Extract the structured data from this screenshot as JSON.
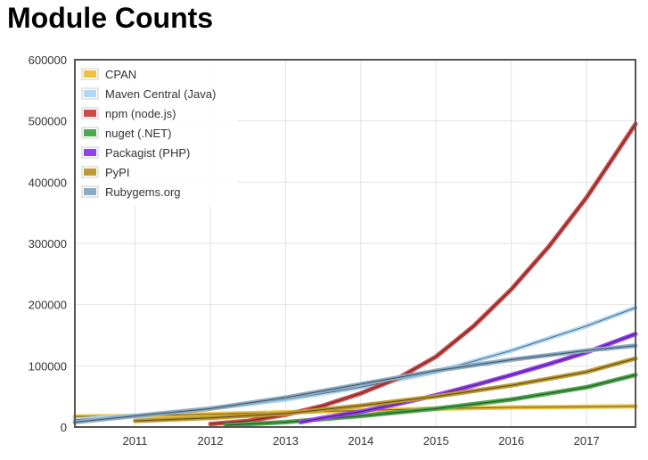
{
  "page": {
    "title": "Module Counts"
  },
  "chart_data": {
    "type": "line",
    "title": "Module Counts",
    "xlabel": "",
    "ylabel": "",
    "xlim": [
      2010.2,
      2017.65
    ],
    "ylim": [
      0,
      600000
    ],
    "x_ticks": [
      2011,
      2012,
      2013,
      2014,
      2015,
      2016,
      2017
    ],
    "y_ticks": [
      0,
      100000,
      200000,
      300000,
      400000,
      500000,
      600000
    ],
    "grid": true,
    "legend_position": "top-left",
    "series": [
      {
        "name": "CPAN",
        "color": "#edc240",
        "x": [
          2010.2,
          2011,
          2012,
          2013,
          2014,
          2015,
          2016,
          2017,
          2017.65
        ],
        "y": [
          17000,
          18000,
          21000,
          24000,
          27000,
          30000,
          32000,
          33000,
          34000
        ]
      },
      {
        "name": "Maven Central (Java)",
        "color": "#afd8f8",
        "x": [
          2010.2,
          2011,
          2012,
          2013,
          2014,
          2015,
          2016,
          2017,
          2017.65
        ],
        "y": [
          12000,
          18000,
          30000,
          45000,
          65000,
          90000,
          125000,
          165000,
          195000
        ]
      },
      {
        "name": "npm (node.js)",
        "color": "#cb4b4b",
        "x": [
          2012,
          2012.5,
          2013,
          2013.5,
          2014,
          2014.5,
          2015,
          2015.5,
          2016,
          2016.5,
          2017,
          2017.3,
          2017.65
        ],
        "y": [
          5000,
          10000,
          20000,
          35000,
          55000,
          80000,
          115000,
          165000,
          225000,
          295000,
          375000,
          430000,
          495000
        ]
      },
      {
        "name": "nuget (.NET)",
        "color": "#4da74d",
        "x": [
          2012.2,
          2013,
          2014,
          2015,
          2016,
          2017,
          2017.65
        ],
        "y": [
          3000,
          8000,
          18000,
          30000,
          45000,
          65000,
          85000
        ]
      },
      {
        "name": "Packagist (PHP)",
        "color": "#9440ed",
        "x": [
          2013.2,
          2013.5,
          2014,
          2014.5,
          2015,
          2015.5,
          2016,
          2016.5,
          2017,
          2017.65
        ],
        "y": [
          8000,
          15000,
          25000,
          38000,
          52000,
          68000,
          85000,
          103000,
          122000,
          152000
        ]
      },
      {
        "name": "PyPI",
        "color": "#bd9b33",
        "x": [
          2011,
          2012,
          2013,
          2014,
          2015,
          2016,
          2017,
          2017.65
        ],
        "y": [
          10000,
          15000,
          22000,
          35000,
          50000,
          68000,
          90000,
          112000
        ]
      },
      {
        "name": "Rubygems.org",
        "color": "#8cacc6",
        "x": [
          2010.2,
          2011,
          2012,
          2013,
          2014,
          2015,
          2016,
          2017,
          2017.65
        ],
        "y": [
          8000,
          18000,
          30000,
          48000,
          70000,
          92000,
          110000,
          125000,
          133000
        ]
      }
    ]
  }
}
